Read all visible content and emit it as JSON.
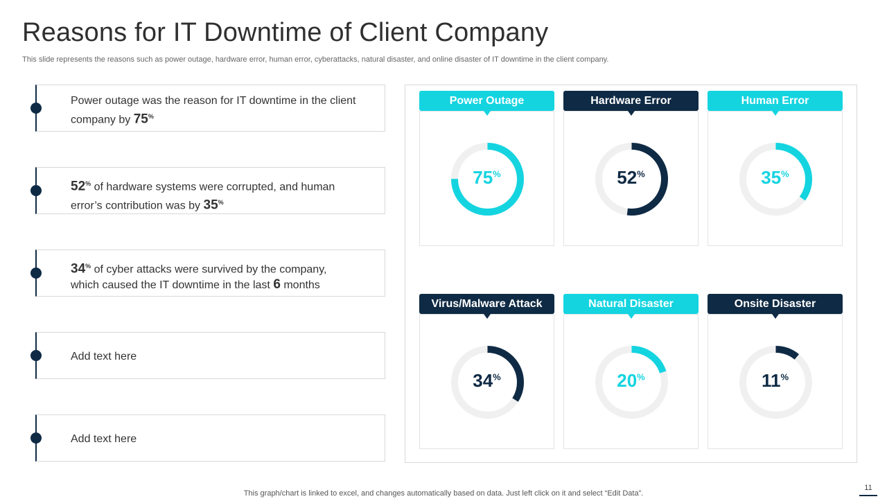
{
  "title": "Reasons for IT Downtime of Client Company",
  "subtitle": "This slide represents the reasons such as power outage, hardware error, human error, cyberattacks, natural disaster, and online disaster of IT downtime in the client company.",
  "items": [
    {
      "pre": "Power outage was the reason for IT downtime in the client company by ",
      "num": "75",
      "sup": "%",
      "mid": "",
      "num2": "",
      "sup2": "",
      "post": ""
    },
    {
      "pre": "",
      "num": "52",
      "sup": "%",
      "mid": " of hardware systems were corrupted, and human error’s contribution was by ",
      "num2": "35",
      "sup2": "%",
      "post": ""
    },
    {
      "pre": "",
      "num": "34",
      "sup": "%",
      "mid": " of cyber attacks were survived by the company, which caused the IT downtime in the last ",
      "num2": "6",
      "sup2": "",
      "post": " months"
    },
    {
      "pre": "Add text here",
      "num": "",
      "sup": "",
      "mid": "",
      "num2": "",
      "sup2": "",
      "post": ""
    },
    {
      "pre": "Add text here",
      "num": "",
      "sup": "",
      "mid": "",
      "num2": "",
      "sup2": "",
      "post": ""
    }
  ],
  "colors": {
    "cyan": "#14d4e0",
    "navy": "#0f2a44",
    "track": "#f0f0f0"
  },
  "chart_data": [
    {
      "type": "pie",
      "title": "Power Outage",
      "value": 75,
      "label": "75",
      "unit": "%",
      "color": "cyan"
    },
    {
      "type": "pie",
      "title": "Hardware Error",
      "value": 52,
      "label": "52",
      "unit": "%",
      "color": "navy"
    },
    {
      "type": "pie",
      "title": "Human Error",
      "value": 35,
      "label": "35",
      "unit": "%",
      "color": "cyan"
    },
    {
      "type": "pie",
      "title": "Virus/Malware Attack",
      "value": 34,
      "label": "34",
      "unit": "%",
      "color": "navy"
    },
    {
      "type": "pie",
      "title": "Natural Disaster",
      "value": 20,
      "label": "20",
      "unit": "%",
      "color": "cyan"
    },
    {
      "type": "pie",
      "title": "Onsite Disaster",
      "value": 11,
      "label": "11",
      "unit": "%",
      "color": "navy"
    }
  ],
  "footer": "This graph/chart is linked to excel, and changes automatically based on data. Just left click on it and select “Edit Data”.",
  "page_number": "11"
}
